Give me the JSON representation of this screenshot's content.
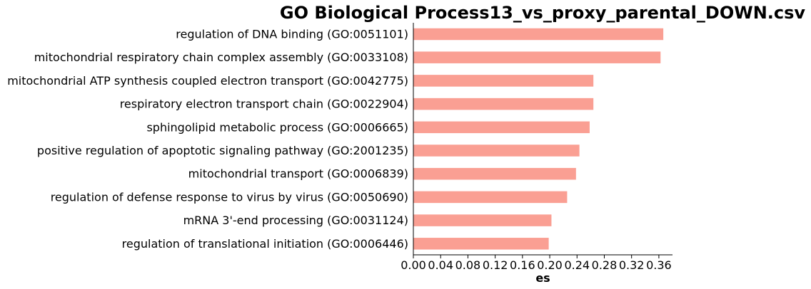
{
  "chart_data": {
    "type": "bar",
    "orientation": "horizontal",
    "title": "GO Biological Process13_vs_proxy_parental_DOWN.csv",
    "xlabel": "es",
    "ylabel": "",
    "xlim": [
      0.0,
      0.38
    ],
    "xticks": [
      "0.00",
      "0.04",
      "0.08",
      "0.12",
      "0.16",
      "0.20",
      "0.24",
      "0.28",
      "0.32",
      "0.36"
    ],
    "bar_color": "#fa9f93",
    "grid": false,
    "categories": [
      "regulation of DNA binding (GO:0051101)",
      "mitochondrial respiratory chain complex assembly (GO:0033108)",
      "mitochondrial ATP synthesis coupled electron transport (GO:0042775)",
      "respiratory electron transport chain (GO:0022904)",
      "sphingolipid metabolic process (GO:0006665)",
      "positive regulation of apoptotic signaling pathway (GO:2001235)",
      "mitochondrial transport (GO:0006839)",
      "regulation of defense response to virus by virus (GO:0050690)",
      "mRNA 3'-end processing (GO:0031124)",
      "regulation of translational initiation (GO:0006446)"
    ],
    "values": [
      0.3665,
      0.3625,
      0.264,
      0.264,
      0.2585,
      0.2435,
      0.2385,
      0.2255,
      0.2025,
      0.1985
    ]
  }
}
